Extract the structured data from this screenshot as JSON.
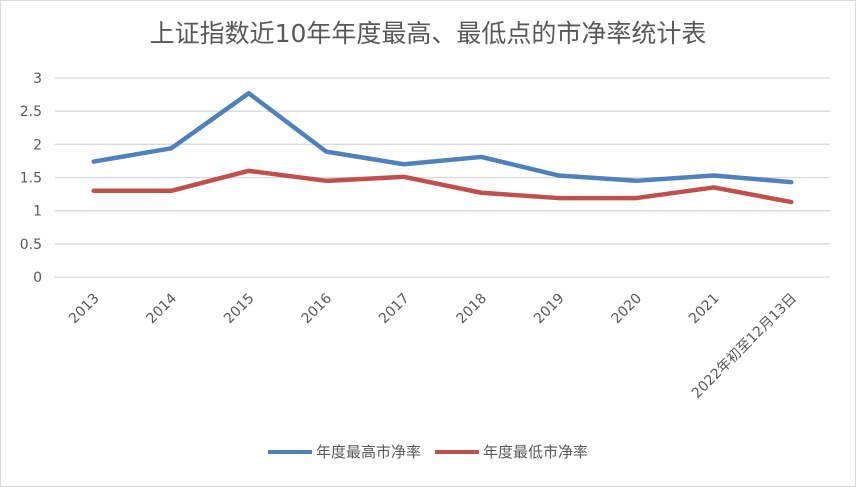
{
  "chart_data": {
    "type": "line",
    "title": "上证指数近10年年度最高、最低点的市净率统计表",
    "categories": [
      "2013",
      "2014",
      "2015",
      "2016",
      "2017",
      "2018",
      "2019",
      "2020",
      "2021",
      "2022年初至12月13日"
    ],
    "series": [
      {
        "name": "年度最高市净率",
        "color": "#4F81BD",
        "values": [
          1.74,
          1.94,
          2.77,
          1.89,
          1.7,
          1.81,
          1.53,
          1.45,
          1.53,
          1.43
        ]
      },
      {
        "name": "年度最低市净率",
        "color": "#C0504D",
        "values": [
          1.3,
          1.3,
          1.6,
          1.45,
          1.51,
          1.27,
          1.19,
          1.19,
          1.35,
          1.13
        ]
      }
    ],
    "yticks": [
      "0",
      "0.5",
      "1",
      "1.5",
      "2",
      "2.5",
      "3"
    ],
    "ylim": [
      0,
      3
    ],
    "grid": true,
    "legend": "bottom"
  }
}
